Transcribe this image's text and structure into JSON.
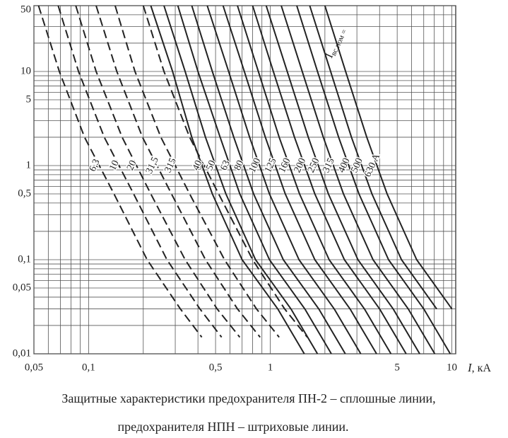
{
  "chart_data": {
    "type": "line",
    "log_x": true,
    "log_y": true,
    "grid": true,
    "xlabel": {
      "symbol": "I",
      "unit": ", кА"
    },
    "xlim": [
      0.05,
      10.5
    ],
    "ylim": [
      0.01,
      50
    ],
    "xticks": [
      {
        "value": 0.05,
        "label": "0,05"
      },
      {
        "value": 0.1,
        "label": "0,1"
      },
      {
        "value": 0.5,
        "label": "0,5"
      },
      1,
      5,
      10
    ],
    "yticks": [
      50,
      10,
      5,
      1,
      {
        "value": 0.5,
        "label": "0,5"
      },
      {
        "value": 0.1,
        "label": "0,1"
      },
      {
        "value": 0.05,
        "label": "0,05"
      },
      {
        "value": 0.01,
        "label": "0,01"
      }
    ],
    "x_minor_ticks": [
      0.06,
      0.07,
      0.08,
      0.09,
      0.2,
      0.3,
      0.4,
      0.6,
      0.7,
      0.8,
      0.9,
      2,
      3,
      4,
      6,
      7,
      8,
      9
    ],
    "y_minor_ticks": [
      0.02,
      0.03,
      0.04,
      0.06,
      0.07,
      0.08,
      0.09,
      0.2,
      0.3,
      0.4,
      0.6,
      0.7,
      0.8,
      0.9,
      2,
      3,
      4,
      6,
      7,
      8,
      9,
      20,
      30,
      40
    ],
    "annotation": {
      "symbol": "I",
      "subscript": "вс.ном ="
    },
    "caption": [
      "Защитные характеристики предохранителя ПН-2 – сплошные линии,",
      "предохранителя НПН – штриховые линии."
    ],
    "series": [
      {
        "name": "6,3",
        "color": "#222",
        "style": "dashed",
        "x": [
          0.053,
          0.069,
          0.095,
          0.138,
          0.21,
          0.32,
          0.42
        ],
        "values": [
          50,
          10,
          2,
          0.5,
          0.1,
          0.03,
          0.015
        ]
      },
      {
        "name": "10",
        "color": "#222",
        "style": "dashed",
        "x": [
          0.068,
          0.088,
          0.122,
          0.177,
          0.27,
          0.41,
          0.54
        ],
        "values": [
          50,
          10,
          2,
          0.5,
          0.1,
          0.03,
          0.015
        ]
      },
      {
        "name": "20",
        "color": "#222",
        "style": "dashed",
        "x": [
          0.085,
          0.11,
          0.153,
          0.22,
          0.34,
          0.51,
          0.68
        ],
        "values": [
          50,
          10,
          2,
          0.5,
          0.1,
          0.03,
          0.015
        ]
      },
      {
        "name": "31,5",
        "color": "#222",
        "style": "dashed",
        "x": [
          0.11,
          0.143,
          0.198,
          0.286,
          0.44,
          0.66,
          0.88
        ],
        "values": [
          50,
          10,
          2,
          0.5,
          0.1,
          0.03,
          0.015
        ]
      },
      {
        "name": "315",
        "color": "#222",
        "style": "dashed",
        "x": [
          0.14,
          0.18,
          0.25,
          0.36,
          0.56,
          0.84,
          1.12
        ],
        "values": [
          50,
          10,
          2,
          0.5,
          0.1,
          0.03,
          0.015
        ]
      },
      {
        "name": "63",
        "color": "#222",
        "style": "dashed",
        "x": [
          0.2,
          0.26,
          0.36,
          0.52,
          0.8,
          1.2,
          1.6
        ],
        "values": [
          50,
          10,
          2,
          0.5,
          0.1,
          0.03,
          0.015
        ]
      },
      {
        "name": "40",
        "color": "#222",
        "style": "solid",
        "x": [
          0.22,
          0.29,
          0.37,
          0.48,
          0.7,
          1.1,
          1.54
        ],
        "values": [
          50,
          10,
          2,
          0.5,
          0.1,
          0.03,
          0.01
        ]
      },
      {
        "name": "50",
        "color": "#222",
        "style": "solid",
        "x": [
          0.26,
          0.34,
          0.44,
          0.57,
          0.83,
          1.3,
          1.82
        ],
        "values": [
          50,
          10,
          2,
          0.5,
          0.1,
          0.03,
          0.01
        ]
      },
      {
        "name": "63",
        "color": "#222",
        "style": "solid",
        "x": [
          0.31,
          0.4,
          0.53,
          0.68,
          0.99,
          1.55,
          2.17
        ],
        "values": [
          50,
          10,
          2,
          0.5,
          0.1,
          0.03,
          0.01
        ]
      },
      {
        "name": "80",
        "color": "#222",
        "style": "solid",
        "x": [
          0.37,
          0.48,
          0.63,
          0.81,
          1.18,
          1.85,
          2.59
        ],
        "values": [
          50,
          10,
          2,
          0.5,
          0.1,
          0.03,
          0.01
        ]
      },
      {
        "name": "100",
        "color": "#222",
        "style": "solid",
        "x": [
          0.45,
          0.59,
          0.77,
          0.99,
          1.44,
          2.25,
          3.15
        ],
        "values": [
          50,
          10,
          2,
          0.5,
          0.1,
          0.03,
          0.01
        ]
      },
      {
        "name": "125",
        "color": "#222",
        "style": "solid",
        "x": [
          0.55,
          0.72,
          0.94,
          1.21,
          1.76,
          2.75,
          3.85
        ],
        "values": [
          50,
          10,
          2,
          0.5,
          0.1,
          0.03,
          0.01
        ]
      },
      {
        "name": "160",
        "color": "#222",
        "style": "solid",
        "x": [
          0.66,
          0.86,
          1.12,
          1.45,
          2.11,
          3.3,
          4.62
        ],
        "values": [
          50,
          10,
          2,
          0.5,
          0.1,
          0.03,
          0.01
        ]
      },
      {
        "name": "200",
        "color": "#222",
        "style": "solid",
        "x": [
          0.8,
          1.04,
          1.36,
          1.76,
          2.56,
          4,
          5.6
        ],
        "values": [
          50,
          10,
          2,
          0.5,
          0.1,
          0.03,
          0.01
        ]
      },
      {
        "name": "250",
        "color": "#222",
        "style": "solid",
        "x": [
          0.95,
          1.24,
          1.62,
          2.09,
          3.04,
          4.75,
          6.65
        ],
        "values": [
          50,
          10,
          2,
          0.5,
          0.1,
          0.03,
          0.01
        ]
      },
      {
        "name": "315",
        "color": "#222",
        "style": "solid",
        "x": [
          1.15,
          1.5,
          1.96,
          2.53,
          3.68,
          5.75,
          8.05
        ],
        "values": [
          50,
          10,
          2,
          0.5,
          0.1,
          0.03,
          0.01
        ]
      },
      {
        "name": "400",
        "color": "#222",
        "style": "solid",
        "x": [
          1.4,
          1.82,
          2.38,
          3.08,
          4.48,
          7,
          9.8
        ],
        "values": [
          50,
          10,
          2,
          0.5,
          0.1,
          0.03,
          0.01
        ]
      },
      {
        "name": "500",
        "color": "#222",
        "style": "solid",
        "x": [
          1.65,
          2.15,
          2.8,
          3.63,
          5.28,
          8.25
        ],
        "values": [
          50,
          10,
          2,
          0.5,
          0.1,
          0.03
        ]
      },
      {
        "name": "630 А",
        "color": "#222",
        "style": "solid",
        "x": [
          2,
          2.6,
          3.4,
          4.4,
          6.4,
          10
        ],
        "values": [
          50,
          10,
          2,
          0.5,
          0.1,
          0.03
        ]
      }
    ]
  }
}
